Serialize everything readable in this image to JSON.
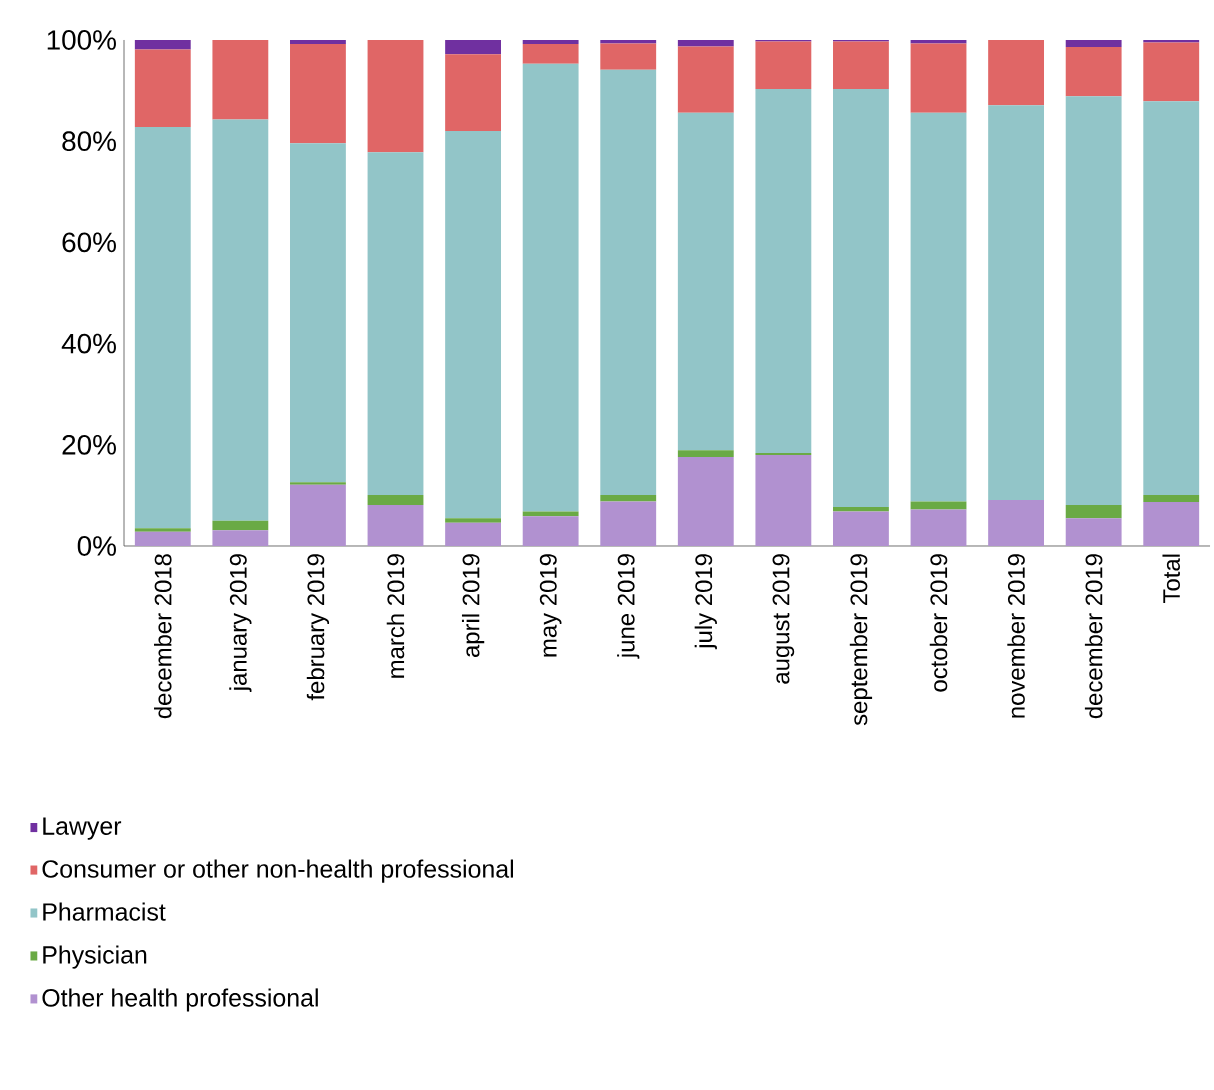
{
  "chart_data": {
    "type": "bar",
    "stacked": true,
    "legend": "bottom",
    "categories": [
      "december 2018",
      "january 2019",
      "february 2019",
      "march 2019",
      "april 2019",
      "may 2019",
      "june 2019",
      "july 2019",
      "august 2019",
      "september 2019",
      "october 2019",
      "november 2019",
      "december 2019",
      "Total"
    ],
    "series": [
      {
        "name": "Other health professional",
        "color": "#b191d0",
        "values": [
          2.8,
          3.1,
          12.1,
          8.1,
          4.6,
          5.9,
          8.8,
          17.6,
          18.0,
          6.8,
          7.2,
          9.1,
          5.5,
          8.7
        ]
      },
      {
        "name": "Physician",
        "color": "#6aaa45",
        "values": [
          0.7,
          1.9,
          0.5,
          2.0,
          0.9,
          0.9,
          1.3,
          1.3,
          0.4,
          0.9,
          1.6,
          0,
          2.6,
          1.4
        ]
      },
      {
        "name": "Pharmacist",
        "color": "#92c5c8",
        "values": [
          79.3,
          79.3,
          67.0,
          67.7,
          76.5,
          88.5,
          84.0,
          66.7,
          71.9,
          82.6,
          76.8,
          78.0,
          80.8,
          77.8
        ]
      },
      {
        "name": "Consumer or other non-health professional",
        "color": "#e06666",
        "values": [
          15.3,
          15.7,
          19.6,
          22.2,
          15.2,
          3.9,
          5.2,
          13.1,
          9.4,
          9.4,
          13.7,
          12.9,
          9.7,
          11.6
        ]
      },
      {
        "name": "Lawyer",
        "color": "#7030a0",
        "values": [
          1.9,
          0,
          0.8,
          0,
          2.8,
          0.8,
          0.7,
          1.3,
          0.3,
          0.3,
          0.7,
          0,
          1.4,
          0.5
        ]
      }
    ],
    "ylim": [
      0,
      100
    ],
    "yticks": [
      {
        "value": 0,
        "label": "0%"
      },
      {
        "value": 20,
        "label": "20%"
      },
      {
        "value": 40,
        "label": "40%"
      },
      {
        "value": 60,
        "label": "60%"
      },
      {
        "value": 80,
        "label": "80%"
      },
      {
        "value": 100,
        "label": "100%"
      }
    ]
  }
}
